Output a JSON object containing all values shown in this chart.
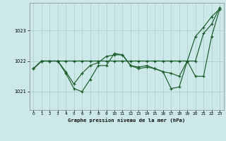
{
  "title": "Graphe pression niveau de la mer (hPa)",
  "background_color": "#cce8e8",
  "grid_color": "#aacccc",
  "line_color": "#1a5c2a",
  "xlim": [
    -0.5,
    23.5
  ],
  "ylim": [
    1020.4,
    1023.9
  ],
  "yticks": [
    1021,
    1022,
    1023
  ],
  "xticks": [
    0,
    1,
    2,
    3,
    4,
    5,
    6,
    7,
    8,
    9,
    10,
    11,
    12,
    13,
    14,
    15,
    16,
    17,
    18,
    19,
    20,
    21,
    22,
    23
  ],
  "s1": [
    1021.75,
    1022.0,
    1022.0,
    1022.0,
    1022.0,
    1022.0,
    1022.0,
    1022.0,
    1022.0,
    1022.0,
    1022.0,
    1022.0,
    1022.0,
    1022.0,
    1022.0,
    1022.0,
    1022.0,
    1022.0,
    1022.0,
    1022.0,
    1022.0,
    1022.9,
    1023.2,
    1023.75
  ],
  "s2": [
    1021.75,
    1022.0,
    1022.0,
    1022.0,
    1021.6,
    1021.1,
    1021.0,
    1021.4,
    1021.85,
    1021.85,
    1022.25,
    1022.2,
    1021.85,
    1021.75,
    1021.8,
    1021.75,
    1021.65,
    1021.1,
    1021.15,
    1022.0,
    1021.5,
    1021.5,
    1022.8,
    1023.7
  ],
  "s3": [
    1021.75,
    1022.0,
    1022.0,
    1022.0,
    1021.65,
    1021.25,
    1021.6,
    1021.85,
    1021.95,
    1022.15,
    1022.2,
    1022.2,
    1021.85,
    1021.8,
    1021.85,
    1021.75,
    1021.65,
    1021.6,
    1021.5,
    1022.0,
    1022.8,
    1023.1,
    1023.45,
    1023.7
  ]
}
